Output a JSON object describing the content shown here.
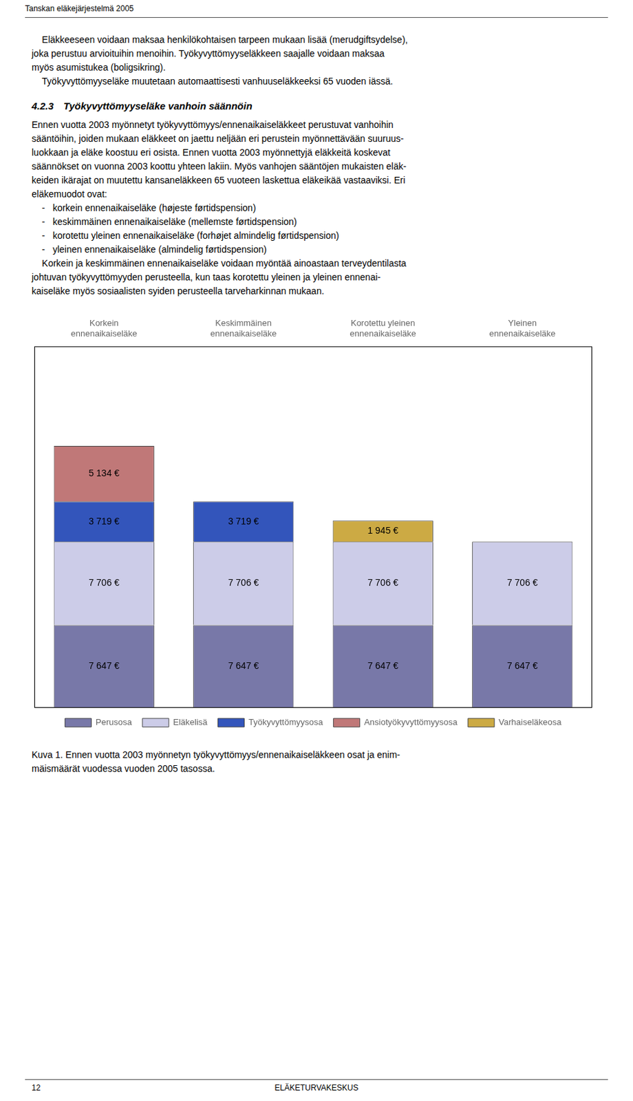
{
  "chart_data": {
    "type": "bar",
    "title": "Kuva 1. Ennen vuotta 2003 myönnetyn työkyvyttömyys/ennenaikaiseläkkeen osat ja enim-\nmäismäärät vuodessa vuoden 2005 tasossa.",
    "annotations": [
      "Tanskan eläkejärjestelmä 2005",
      "    Eläkkeeseen voidaan maksaa henkilökohtaisen tarpeen mukaan lisää (merudgiftsydelse),\njoka perustuu arvioituihin menoihin. Työkyvyttömyyseläkkeen saajalle voidaan maksaa\nmyös asumistukea (boligsikring).\n    Työkyvyttömyyseläke muutetaan automaattisesti vanhuuseläkkeeksi 65 vuoden iässä.",
      "4.2.3 Työkyvyttömyyseläke vanhoin säännöin",
      "Ennen vuotta 2003 myönnetyt työkyvyttömyys/ennenaikaiseläkkeet perustuvat vanhoihin\nsääntöihin, joiden mukaan eläkkeet on jaettu neljään eri perustein myönnettävään suuruus-\nluokkaan ja eläke koostuu eri osista. Ennen vuotta 2003 myönnettyjä eläkkeitä koskevat\nsäännökset on vuonna 2003 koottu yhteen lakiin. Myös vanhojen sääntöjen mukaisten eläk-\nkeiden ikärajat on muutettu kansaneläkkeen 65 vuoteen laskettua eläkeikää vastaaviksi. Eri\neläkemuodot ovat:\n    -   korkein ennenaikaiseläke (højeste førtidspension)\n    -   keskimmäinen ennenaikaiseläke (mellemste førtidspension)\n    -   korotettu yleinen ennenaikaiseläke (forhøjet almindelig førtidspension)\n    -   yleinen ennenaikaiseläke (almindelig førtidspension)\n    Korkein ja keskimmäinen ennenaikaiseläke voidaan myöntää ainoastaan terveydentilasta\njohtuvan työkyvyttömyyden perusteella, kun taas korotettu yleinen ja yleinen ennenai-\nkaiseläke myös sosiaalisten syiden perusteella tarveharkinnan mukaan.",
      "12",
      "ELÄKETURVAKESKUS"
    ],
    "categories": [
      "Korkein\nennenaikaiseläke",
      "Keskimmäinen\nennenaikaiseläke",
      "Korotettu yleinen\nennenaikaiseläke",
      "Yleinen\nennenaikaiseläke"
    ],
    "series": [
      {
        "name": "Perusosa",
        "color": "#7878a8",
        "values": [
          7647,
          7647,
          7647,
          7647
        ],
        "value_labels": [
          "7 647 €",
          "7 647 €",
          "7 647 €",
          "7 647 €"
        ]
      },
      {
        "name": "Eläkelisä",
        "color": "#cccce8",
        "values": [
          7706,
          7706,
          7706,
          7706
        ],
        "value_labels": [
          "7 706 €",
          "7 706 €",
          "7 706 €",
          "7 706 €"
        ]
      },
      {
        "name": "Työkyvyttömyysosa",
        "color": "#3355bb",
        "values": [
          3719,
          3719,
          0,
          0
        ],
        "value_labels": [
          "3 719 €",
          "3 719 €",
          null,
          null
        ]
      },
      {
        "name": "Ansiotyökyvyttömyysosa",
        "color": "#c07878",
        "values": [
          5134,
          0,
          0,
          0
        ],
        "value_labels": [
          "5 134 €",
          null,
          null,
          null
        ]
      },
      {
        "name": "Varhaiseläkeosa",
        "color": "#ccaa44",
        "values": [
          0,
          0,
          1945,
          0
        ],
        "value_labels": [
          null,
          null,
          "1 945 €",
          null
        ]
      }
    ],
    "ylim": [
      0,
      33404.28
    ],
    "stacked": true,
    "data_labels": true,
    "tick_labels": "x",
    "grid": false,
    "legend": "bottom"
  }
}
